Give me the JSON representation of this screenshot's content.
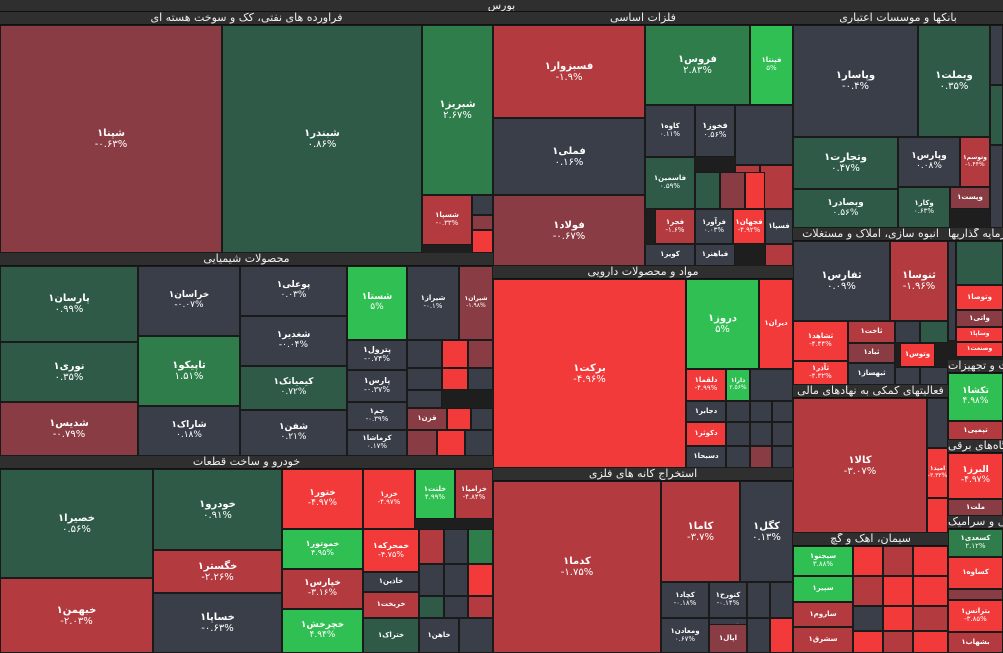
{
  "market_title": "بورس",
  "colors": {
    "down_strong": "#f23a3a",
    "down_mid": "#b33a3f",
    "down_weak": "#8a3c44",
    "neutral": "#3a3e48",
    "up_weak": "#2f5a48",
    "up_mid": "#2e7d4a",
    "up_strong": "#2fbf52",
    "header_bg": "#2f2f2f"
  },
  "sectors": [
    {
      "id": "refining",
      "title": "فراورده های نفتی، کک و سوخت هسته ای"
    },
    {
      "id": "metals",
      "title": "فلزات اساسی"
    },
    {
      "id": "banks",
      "title": "بانکها و موسسات اعتباری"
    },
    {
      "id": "chemicals",
      "title": "محصولات شیمیایی"
    },
    {
      "id": "pharma",
      "title": "مواد و محصولات دارویی"
    },
    {
      "id": "construction",
      "title": "انبوه سازی، املاک و مستغلات"
    },
    {
      "id": "investment",
      "title": "سرمایه گذاریها"
    },
    {
      "id": "auto",
      "title": "خودرو و ساخت قطعات"
    },
    {
      "id": "mining",
      "title": "استخراج کانه های فلزی"
    },
    {
      "id": "financial",
      "title": "فعالیتهای کمکی به نهادهای مالی"
    },
    {
      "id": "equipment",
      "title": "ماشین آلات و تجهیزات"
    },
    {
      "id": "cement",
      "title": "سیمان، آهک و گچ"
    },
    {
      "id": "electric",
      "title": "دستگاه‌های برقی"
    },
    {
      "id": "tiles",
      "title": "کاشی و سرامیک"
    },
    {
      "id": "machinery",
      "title": "ساخت دستگاه‌ها"
    }
  ],
  "tiles": [
    {
      "name": "شپنا۱",
      "change": "-۰.۶۳%"
    },
    {
      "name": "شبندر۱",
      "change": "۰.۸۶%"
    },
    {
      "name": "شبریز۱",
      "change": "۲.۶۷%"
    },
    {
      "name": "شسپا۱",
      "change": "-۰.۳۳%"
    },
    {
      "name": "پارسان۱",
      "change": "۰.۹۹%"
    },
    {
      "name": "خراسان۱",
      "change": "-۰.۰۷%"
    },
    {
      "name": "پوعلی۱",
      "change": "۰.۰۳%"
    },
    {
      "name": "شستا۱",
      "change": "۵%"
    },
    {
      "name": "شیراز۱",
      "change": "-۰.۱%"
    },
    {
      "name": "شیران۱",
      "change": "-۱.۹۸%"
    },
    {
      "name": "نوری۱",
      "change": "۰.۳۵%"
    },
    {
      "name": "تاپیکو۱",
      "change": "۱.۵۱%"
    },
    {
      "name": "شغدیر۱",
      "change": "-۰.۰۴%"
    },
    {
      "name": "پترول۱",
      "change": "-۰.۷۴%"
    },
    {
      "name": "پارس۱",
      "change": "-۰.۳۷%"
    },
    {
      "name": "کیمیاتک۱",
      "change": "۰.۷۲%"
    },
    {
      "name": "جم۱",
      "change": "-۰.۳۹%"
    },
    {
      "name": "شدیس۱",
      "change": "-۰.۷۹%"
    },
    {
      "name": "شاراک۱",
      "change": "۰.۱۸%"
    },
    {
      "name": "شفن۱",
      "change": "۰.۲۱%"
    },
    {
      "name": "کرماشا۱",
      "change": "۰.۱۷%"
    },
    {
      "name": "قزن۱",
      "change": ""
    },
    {
      "name": "فسبزوار۱",
      "change": "-۱.۹%"
    },
    {
      "name": "فروس۱",
      "change": "۲.۸۳%"
    },
    {
      "name": "فپنتا۱",
      "change": "۵%"
    },
    {
      "name": "فملی۱",
      "change": "۰.۱۶%"
    },
    {
      "name": "کاوه۱",
      "change": "۰.۱۱%"
    },
    {
      "name": "فخوز۱",
      "change": "۰.۵۶%"
    },
    {
      "name": "فاسمین۱",
      "change": "۰.۵۹%"
    },
    {
      "name": "فولاد۱",
      "change": "-۰.۶۷%"
    },
    {
      "name": "فجر۱",
      "change": "-۱.۶%"
    },
    {
      "name": "فرآور۱",
      "change": "۰.۰۳%"
    },
    {
      "name": "فجهان۱",
      "change": "-۴.۹۲%"
    },
    {
      "name": "فسپا۱",
      "change": ""
    },
    {
      "name": "کویر۱",
      "change": ""
    },
    {
      "name": "فباهنر۱",
      "change": ""
    },
    {
      "name": "وپاسار۱",
      "change": "-۰.۴%"
    },
    {
      "name": "وبملت۱",
      "change": "۰.۳۵%"
    },
    {
      "name": "وتجارت۱",
      "change": "۰.۴۷%"
    },
    {
      "name": "وپارس۱",
      "change": "۰.۰۸%"
    },
    {
      "name": "وتوسم۱",
      "change": "-۱.۴۴%"
    },
    {
      "name": "وپست۱",
      "change": ""
    },
    {
      "name": "وبصادر۱",
      "change": "۰.۵۶%"
    },
    {
      "name": "وکار۱",
      "change": "۰.۶۳%"
    },
    {
      "name": "برکت۱",
      "change": "-۴.۹۶%"
    },
    {
      "name": "دروز۱",
      "change": "۵%"
    },
    {
      "name": "دیران۱",
      "change": ""
    },
    {
      "name": "دلقما۱",
      "change": "-۴.۹۹%"
    },
    {
      "name": "دارا۱",
      "change": "۲.۵۶%"
    },
    {
      "name": "دجابر۱",
      "change": ""
    },
    {
      "name": "دکوثر۱",
      "change": ""
    },
    {
      "name": "دسبحا۱",
      "change": ""
    },
    {
      "name": "ثفارس۱",
      "change": "۰.۰۹%"
    },
    {
      "name": "ثنوسا۱",
      "change": "-۱.۹۶%"
    },
    {
      "name": "ثشاهد۱",
      "change": "-۴.۴۴%"
    },
    {
      "name": "ثاخت۱",
      "change": ""
    },
    {
      "name": "ثباد۱",
      "change": ""
    },
    {
      "name": "وتوس۱",
      "change": ""
    },
    {
      "name": "ثآذر۱",
      "change": "-۴.۳۲%"
    },
    {
      "name": "ثبهساز۱",
      "change": ""
    },
    {
      "name": "وتوصا۱",
      "change": ""
    },
    {
      "name": "واتی۱",
      "change": ""
    },
    {
      "name": "وساپا۱",
      "change": ""
    },
    {
      "name": "وصنعت۱",
      "change": ""
    },
    {
      "name": "خصیرا۱",
      "change": "۰.۵۶%"
    },
    {
      "name": "خودرو۱",
      "change": "۰.۹۱%"
    },
    {
      "name": "ختور۱",
      "change": "-۴.۹۷%"
    },
    {
      "name": "خزر۱",
      "change": "-۴.۹۷%"
    },
    {
      "name": "خلنت۱",
      "change": "۴.۹۹%"
    },
    {
      "name": "خزامیا۱",
      "change": "-۴.۸۴%"
    },
    {
      "name": "خمحرکه۱",
      "change": "-۴.۷۵%"
    },
    {
      "name": "خموتور۱",
      "change": "۴.۹۵%"
    },
    {
      "name": "خگستر۱",
      "change": "-۲.۲۶%"
    },
    {
      "name": "خاذین۱",
      "change": ""
    },
    {
      "name": "خریخت۱",
      "change": ""
    },
    {
      "name": "خپارس۱",
      "change": "-۳.۱۶%"
    },
    {
      "name": "خبهمن۱",
      "change": "-۲.۰۳%"
    },
    {
      "name": "خساپا۱",
      "change": "-۰.۶۳%"
    },
    {
      "name": "خچرخش۱",
      "change": "۴.۹۴%"
    },
    {
      "name": "ختراک۱",
      "change": ""
    },
    {
      "name": "خاهن۱",
      "change": ""
    },
    {
      "name": "کدما۱",
      "change": "-۱.۷۵%"
    },
    {
      "name": "کاما۱",
      "change": "-۳.۷%"
    },
    {
      "name": "کگل۱",
      "change": "۰.۱۳%"
    },
    {
      "name": "کچاد۱",
      "change": "-۰.۱۸%"
    },
    {
      "name": "کنورح۱",
      "change": "-۰.۱۴%"
    },
    {
      "name": "کنور۱",
      "change": ""
    },
    {
      "name": "ومعادن۱",
      "change": "۰.۶۷%"
    },
    {
      "name": "اپال۱",
      "change": ""
    },
    {
      "name": "کالا۱",
      "change": "-۳.۰۷%"
    },
    {
      "name": "امید۱",
      "change": "-۳.۳۳%"
    },
    {
      "name": "تکشا۱",
      "change": "۴.۹۸%"
    },
    {
      "name": "تپمپی۱",
      "change": ""
    },
    {
      "name": "البرز۱",
      "change": "-۴.۹۷%"
    },
    {
      "name": "ملت۱",
      "change": ""
    },
    {
      "name": "کسعدی۱",
      "change": "۲.۱۲%"
    },
    {
      "name": "کساوه۱",
      "change": ""
    },
    {
      "name": "بترانس۱",
      "change": "-۳.۸۵%"
    },
    {
      "name": "بشهاب۱",
      "change": ""
    },
    {
      "name": "سیجنو۱",
      "change": "۳.۸۸%"
    },
    {
      "name": "سپیر۱",
      "change": ""
    },
    {
      "name": "ساروم۱",
      "change": ""
    },
    {
      "name": "سشرق۱",
      "change": ""
    }
  ]
}
